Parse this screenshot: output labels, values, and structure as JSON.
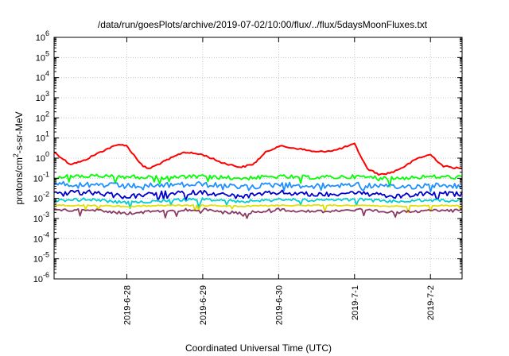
{
  "chart_data": {
    "type": "line",
    "title": "/data/run/goesPlots/archive/2019-07-02/10:00/flux/../flux/5daysMoonFluxes.txt",
    "xlabel": "Coordinated Universal Time (UTC)",
    "ylabel": {
      "prefix": "protons/cm",
      "superscript": "2",
      "suffix": "-s-sr-MeV"
    },
    "y_scale": "log",
    "ylim_exponents": [
      -6,
      6
    ],
    "y_ticks": [
      {
        "base": "10",
        "exp": "6"
      },
      {
        "base": "10",
        "exp": "5"
      },
      {
        "base": "10",
        "exp": "4"
      },
      {
        "base": "10",
        "exp": "3"
      },
      {
        "base": "10",
        "exp": "2"
      },
      {
        "base": "10",
        "exp": "1"
      },
      {
        "base": "10",
        "exp": "0"
      },
      {
        "base": "10",
        "exp": "-1"
      },
      {
        "base": "10",
        "exp": "-2"
      },
      {
        "base": "10",
        "exp": "-3"
      },
      {
        "base": "10",
        "exp": "-4"
      },
      {
        "base": "10",
        "exp": "-5"
      },
      {
        "base": "10",
        "exp": "-6"
      }
    ],
    "x_range": [
      "2019-06-27T01:00",
      "2019-07-02T10:00"
    ],
    "x_ticks": [
      "2019-6-28",
      "2019-6-29",
      "2019-6-30",
      "2019-7-1",
      "2019-7-2"
    ],
    "x_tick_dates": [
      "2019-06-28",
      "2019-06-29",
      "2019-06-30",
      "2019-07-01",
      "2019-07-02"
    ],
    "grid": true,
    "series": [
      {
        "color": "#ff0000",
        "x": [
          "2019-06-27T01:00",
          "2019-06-27T06:00",
          "2019-06-27T10:00",
          "2019-06-27T14:00",
          "2019-06-27T18:00",
          "2019-06-27T22:00",
          "2019-06-28T00:00",
          "2019-06-28T03:00",
          "2019-06-28T05:00",
          "2019-06-28T07:00",
          "2019-06-28T10:00",
          "2019-06-28T14:00",
          "2019-06-28T18:00",
          "2019-06-29T00:00",
          "2019-06-29T06:00",
          "2019-06-29T12:00",
          "2019-06-29T16:00",
          "2019-06-29T20:00",
          "2019-06-30T00:00",
          "2019-06-30T06:00",
          "2019-06-30T12:00",
          "2019-06-30T18:00",
          "2019-07-01T00:00",
          "2019-07-01T04:00",
          "2019-07-01T08:00",
          "2019-07-01T12:00",
          "2019-07-01T16:00",
          "2019-07-01T20:00",
          "2019-07-02T00:00",
          "2019-07-02T04:00",
          "2019-07-02T10:00"
        ],
        "y": [
          2,
          0.5,
          0.7,
          1.5,
          3,
          5,
          4,
          1,
          0.4,
          0.3,
          0.5,
          1,
          2,
          1.5,
          0.6,
          0.35,
          0.5,
          2,
          4,
          3,
          2,
          2.5,
          5,
          0.3,
          0.15,
          0.2,
          0.4,
          1,
          1.5,
          0.4,
          0.3
        ]
      },
      {
        "color": "#00ff00",
        "x": [
          "2019-06-27T01:00",
          "2019-06-27T12:00",
          "2019-06-28T00:00",
          "2019-06-28T12:00",
          "2019-06-29T00:00",
          "2019-06-29T12:00",
          "2019-06-30T00:00",
          "2019-06-30T12:00",
          "2019-07-01T00:00",
          "2019-07-01T12:00",
          "2019-07-02T00:00",
          "2019-07-02T10:00"
        ],
        "y": [
          0.12,
          0.13,
          0.12,
          0.11,
          0.12,
          0.1,
          0.12,
          0.11,
          0.12,
          0.1,
          0.12,
          0.11
        ]
      },
      {
        "color": "#1e90ff",
        "x": [
          "2019-06-27T01:00",
          "2019-06-27T12:00",
          "2019-06-28T00:00",
          "2019-06-28T12:00",
          "2019-06-29T00:00",
          "2019-06-29T12:00",
          "2019-06-30T00:00",
          "2019-06-30T12:00",
          "2019-07-01T00:00",
          "2019-07-01T12:00",
          "2019-07-02T00:00",
          "2019-07-02T10:00"
        ],
        "y": [
          0.05,
          0.05,
          0.04,
          0.045,
          0.05,
          0.035,
          0.05,
          0.04,
          0.05,
          0.035,
          0.045,
          0.04
        ]
      },
      {
        "color": "#0000cd",
        "x": [
          "2019-06-27T01:00",
          "2019-06-27T12:00",
          "2019-06-28T00:00",
          "2019-06-28T12:00",
          "2019-06-29T00:00",
          "2019-06-29T12:00",
          "2019-06-30T00:00",
          "2019-06-30T12:00",
          "2019-07-01T00:00",
          "2019-07-01T12:00",
          "2019-07-02T00:00",
          "2019-07-02T10:00"
        ],
        "y": [
          0.018,
          0.02,
          0.012,
          0.018,
          0.02,
          0.012,
          0.02,
          0.015,
          0.02,
          0.012,
          0.018,
          0.016
        ]
      },
      {
        "color": "#00ced1",
        "x": [
          "2019-06-27T01:00",
          "2019-06-27T12:00",
          "2019-06-28T00:00",
          "2019-06-28T12:00",
          "2019-06-29T00:00",
          "2019-06-29T12:00",
          "2019-06-30T00:00",
          "2019-06-30T12:00",
          "2019-07-01T00:00",
          "2019-07-01T12:00",
          "2019-07-02T00:00",
          "2019-07-02T10:00"
        ],
        "y": [
          0.008,
          0.009,
          0.006,
          0.008,
          0.009,
          0.007,
          0.009,
          0.008,
          0.009,
          0.007,
          0.008,
          0.008
        ]
      },
      {
        "color": "#e0e000",
        "x": [
          "2019-06-27T01:00",
          "2019-06-27T12:00",
          "2019-06-28T00:00",
          "2019-06-28T12:00",
          "2019-06-29T00:00",
          "2019-06-29T12:00",
          "2019-06-30T00:00",
          "2019-06-30T12:00",
          "2019-07-01T00:00",
          "2019-07-01T12:00",
          "2019-07-02T00:00",
          "2019-07-02T10:00"
        ],
        "y": [
          0.0045,
          0.0045,
          0.004,
          0.0045,
          0.0045,
          0.004,
          0.0045,
          0.0045,
          0.0045,
          0.004,
          0.0045,
          0.0045
        ]
      },
      {
        "color": "#8b3a62",
        "x": [
          "2019-06-27T01:00",
          "2019-06-27T12:00",
          "2019-06-28T00:00",
          "2019-06-28T12:00",
          "2019-06-29T00:00",
          "2019-06-29T12:00",
          "2019-06-30T00:00",
          "2019-06-30T12:00",
          "2019-07-01T00:00",
          "2019-07-01T12:00",
          "2019-07-02T00:00",
          "2019-07-02T10:00"
        ],
        "y": [
          0.0025,
          0.0028,
          0.0018,
          0.0025,
          0.0028,
          0.0018,
          0.0028,
          0.0022,
          0.0028,
          0.002,
          0.0025,
          0.0025
        ]
      }
    ]
  }
}
